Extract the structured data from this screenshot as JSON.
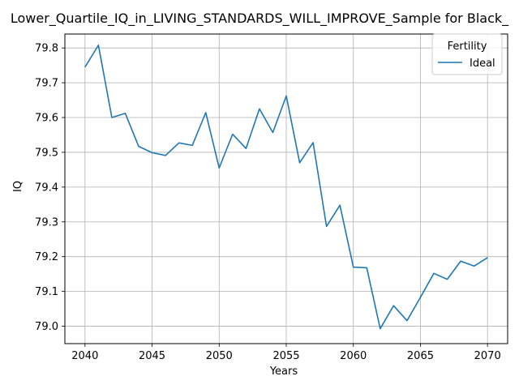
{
  "chart_data": {
    "type": "line",
    "title": "Lower_Quartile_IQ_in_LIVING_STANDARDS_WILL_IMPROVE_Sample for Black_",
    "xlabel": "Years",
    "ylabel": "IQ",
    "xlim": [
      2038.5,
      2071.5
    ],
    "ylim": [
      78.95,
      79.84
    ],
    "xticks": [
      2040,
      2045,
      2050,
      2055,
      2060,
      2065,
      2070
    ],
    "yticks": [
      79.0,
      79.1,
      79.2,
      79.3,
      79.4,
      79.5,
      79.6,
      79.7,
      79.8
    ],
    "ytick_labels": [
      "79.0",
      "79.1",
      "79.2",
      "79.3",
      "79.4",
      "79.5",
      "79.6",
      "79.7",
      "79.8"
    ],
    "grid": true,
    "legend": {
      "title": "Fertility",
      "placement": "top-right"
    },
    "series": [
      {
        "name": "Ideal",
        "color": "#1f77b4",
        "x": [
          2040,
          2041,
          2042,
          2043,
          2044,
          2045,
          2046,
          2047,
          2048,
          2049,
          2050,
          2051,
          2052,
          2053,
          2054,
          2055,
          2056,
          2057,
          2058,
          2059,
          2060,
          2061,
          2062,
          2063,
          2064,
          2065,
          2066,
          2067,
          2068,
          2069,
          2070
        ],
        "y": [
          79.745,
          79.808,
          79.6,
          79.612,
          79.517,
          79.499,
          79.491,
          79.527,
          79.52,
          79.614,
          79.455,
          79.552,
          79.511,
          79.625,
          79.557,
          79.662,
          79.47,
          79.528,
          79.287,
          79.348,
          79.17,
          79.168,
          78.993,
          79.059,
          79.016,
          79.083,
          79.152,
          79.135,
          79.187,
          79.173,
          79.197
        ]
      }
    ]
  }
}
